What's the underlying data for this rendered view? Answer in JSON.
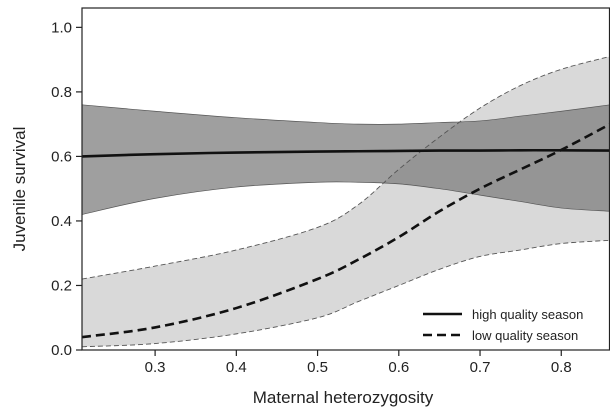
{
  "chart_data": {
    "type": "line",
    "xlabel": "Maternal heterozygosity",
    "ylabel": "Juvenile survival",
    "xlim": [
      0.21,
      0.86
    ],
    "ylim": [
      0.0,
      1.06
    ],
    "xticks": [
      0.3,
      0.4,
      0.5,
      0.6,
      0.7,
      0.8
    ],
    "yticks": [
      0.0,
      0.2,
      0.4,
      0.6,
      0.8,
      1.0
    ],
    "x_tick_labels": [
      "0.3",
      "0.4",
      "0.5",
      "0.6",
      "0.7",
      "0.8"
    ],
    "y_tick_labels": [
      "0.0",
      "0.2",
      "0.4",
      "0.6",
      "0.8",
      "1.0"
    ],
    "grid": false,
    "legend_position": "bottom-right",
    "x": [
      0.21,
      0.3,
      0.4,
      0.5,
      0.55,
      0.6,
      0.65,
      0.7,
      0.75,
      0.8,
      0.86
    ],
    "series": [
      {
        "name": "high quality season",
        "line_style": "solid",
        "values": [
          0.6,
          0.607,
          0.612,
          0.615,
          0.616,
          0.617,
          0.618,
          0.618,
          0.619,
          0.619,
          0.618
        ],
        "ci_lower": [
          0.42,
          0.47,
          0.505,
          0.52,
          0.52,
          0.515,
          0.5,
          0.48,
          0.46,
          0.44,
          0.43
        ],
        "ci_upper": [
          0.76,
          0.74,
          0.72,
          0.705,
          0.7,
          0.7,
          0.705,
          0.71,
          0.725,
          0.74,
          0.76
        ],
        "line_color": "#111111",
        "band_color": "#7a7a7a"
      },
      {
        "name": "low quality season",
        "line_style": "dashed",
        "values": [
          0.04,
          0.07,
          0.13,
          0.22,
          0.28,
          0.35,
          0.43,
          0.5,
          0.56,
          0.62,
          0.7
        ],
        "ci_lower": [
          0.01,
          0.02,
          0.05,
          0.1,
          0.15,
          0.2,
          0.25,
          0.29,
          0.31,
          0.33,
          0.34
        ],
        "ci_upper": [
          0.22,
          0.26,
          0.31,
          0.38,
          0.45,
          0.56,
          0.66,
          0.75,
          0.82,
          0.87,
          0.91
        ],
        "line_color": "#111111",
        "band_color": "#d9d9d9"
      }
    ]
  }
}
